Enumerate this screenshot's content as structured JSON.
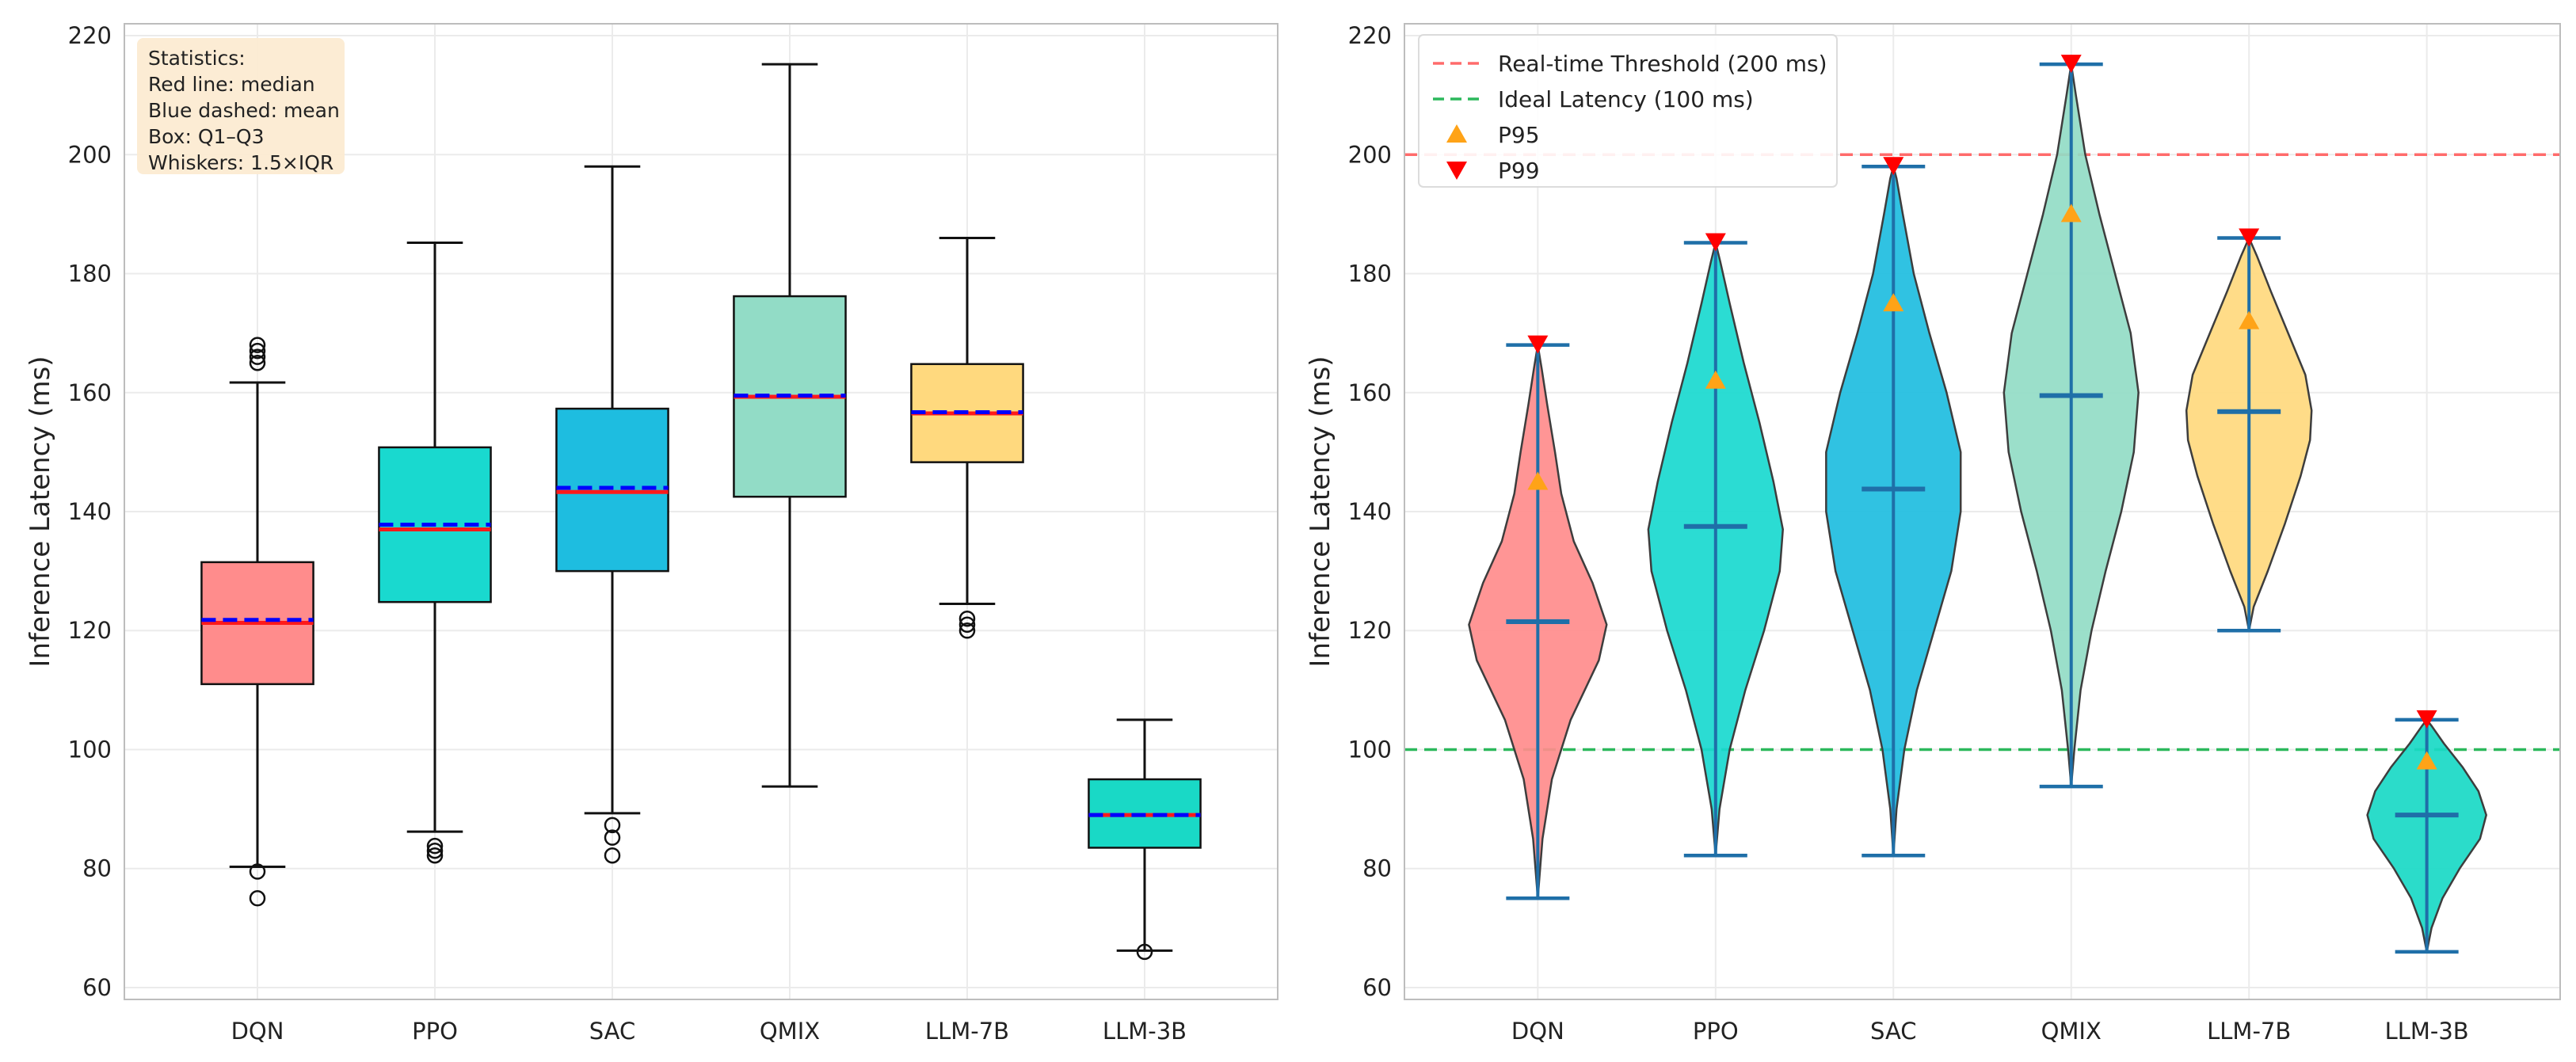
{
  "chart_data": [
    {
      "type": "box",
      "ylabel": "Inference Latency (ms)",
      "ylim": [
        58,
        222
      ],
      "yticks": [
        60,
        80,
        100,
        120,
        140,
        160,
        180,
        200,
        220
      ],
      "categories": [
        "DQN",
        "PPO",
        "SAC",
        "QMIX",
        "LLM-7B",
        "LLM-3B"
      ],
      "colors": [
        "#ff8c8c",
        "#19d9cf",
        "#1ebde0",
        "#92dcc6",
        "#ffd97e",
        "#19d9c6"
      ],
      "boxes": [
        {
          "q1": 111,
          "median": 121.3,
          "mean": 121.8,
          "q3": 131.5,
          "whisker_low": 80.3,
          "whisker_high": 161.7,
          "outliers": [
            75,
            79.5,
            165,
            166,
            167,
            168
          ]
        },
        {
          "q1": 124.8,
          "median": 137,
          "mean": 137.8,
          "q3": 150.8,
          "whisker_low": 86.2,
          "whisker_high": 185.2,
          "outliers": [
            82.2,
            83,
            83.8
          ]
        },
        {
          "q1": 130,
          "median": 143.3,
          "mean": 144,
          "q3": 157.3,
          "whisker_low": 89.3,
          "whisker_high": 198,
          "outliers": [
            82.2,
            85.2,
            87.3
          ]
        },
        {
          "q1": 142.5,
          "median": 159.3,
          "mean": 159.5,
          "q3": 176.2,
          "whisker_low": 93.8,
          "whisker_high": 215.2,
          "outliers": []
        },
        {
          "q1": 148.3,
          "median": 156.5,
          "mean": 156.7,
          "q3": 164.8,
          "whisker_low": 124.5,
          "whisker_high": 186,
          "outliers": [
            120,
            121,
            122
          ]
        },
        {
          "q1": 83.5,
          "median": 89,
          "mean": 89,
          "q3": 95,
          "whisker_low": 66.2,
          "whisker_high": 105,
          "outliers": [
            66
          ]
        }
      ],
      "stats_box": [
        "Statistics:",
        "Red line: median",
        "Blue dashed: mean",
        "Box: Q1–Q3",
        "Whiskers: 1.5×IQR"
      ]
    },
    {
      "type": "violin",
      "ylabel": "Inference Latency (ms)",
      "ylim": [
        58,
        222
      ],
      "yticks": [
        60,
        80,
        100,
        120,
        140,
        160,
        180,
        200,
        220
      ],
      "categories": [
        "DQN",
        "PPO",
        "SAC",
        "QMIX",
        "LLM-7B",
        "LLM-3B"
      ],
      "colors": [
        "#ff8c8c",
        "#19d9cf",
        "#1ebde0",
        "#92dcc6",
        "#ffd97e",
        "#19d9c6"
      ],
      "violins": [
        {
          "min": 75,
          "max": 168,
          "mean": 121.5,
          "p95": 145,
          "p99": 168,
          "profile": [
            [
              75,
              0
            ],
            [
              85,
              0.06
            ],
            [
              95,
              0.18
            ],
            [
              105,
              0.42
            ],
            [
              115,
              0.78
            ],
            [
              121,
              0.88
            ],
            [
              128,
              0.7
            ],
            [
              135,
              0.46
            ],
            [
              143,
              0.3
            ],
            [
              150,
              0.22
            ],
            [
              158,
              0.12
            ],
            [
              164,
              0.05
            ],
            [
              168,
              0
            ]
          ]
        },
        {
          "min": 82.2,
          "max": 185.2,
          "mean": 137.5,
          "p95": 162,
          "p99": 185.2,
          "profile": [
            [
              82.2,
              0
            ],
            [
              90,
              0.05
            ],
            [
              100,
              0.18
            ],
            [
              110,
              0.38
            ],
            [
              120,
              0.62
            ],
            [
              130,
              0.82
            ],
            [
              137,
              0.86
            ],
            [
              145,
              0.74
            ],
            [
              155,
              0.56
            ],
            [
              165,
              0.36
            ],
            [
              175,
              0.18
            ],
            [
              182,
              0.06
            ],
            [
              185.2,
              0
            ]
          ]
        },
        {
          "min": 82.2,
          "max": 198,
          "mean": 143.8,
          "p95": 175,
          "p99": 198,
          "profile": [
            [
              82.2,
              0
            ],
            [
              90,
              0.04
            ],
            [
              100,
              0.14
            ],
            [
              110,
              0.3
            ],
            [
              120,
              0.52
            ],
            [
              130,
              0.74
            ],
            [
              140,
              0.86
            ],
            [
              150,
              0.86
            ],
            [
              160,
              0.68
            ],
            [
              170,
              0.46
            ],
            [
              180,
              0.26
            ],
            [
              190,
              0.12
            ],
            [
              196,
              0.04
            ],
            [
              198,
              0
            ]
          ]
        },
        {
          "min": 93.8,
          "max": 215.2,
          "mean": 159.5,
          "p95": 190,
          "p99": 215.2,
          "profile": [
            [
              93.8,
              0
            ],
            [
              100,
              0.04
            ],
            [
              110,
              0.12
            ],
            [
              120,
              0.26
            ],
            [
              130,
              0.44
            ],
            [
              140,
              0.64
            ],
            [
              150,
              0.8
            ],
            [
              160,
              0.86
            ],
            [
              170,
              0.76
            ],
            [
              180,
              0.56
            ],
            [
              190,
              0.36
            ],
            [
              200,
              0.18
            ],
            [
              210,
              0.06
            ],
            [
              215.2,
              0
            ]
          ]
        },
        {
          "min": 120,
          "max": 186,
          "mean": 156.8,
          "p95": 172,
          "p99": 186,
          "profile": [
            [
              120,
              0
            ],
            [
              124,
              0.06
            ],
            [
              130,
              0.24
            ],
            [
              138,
              0.46
            ],
            [
              146,
              0.66
            ],
            [
              152,
              0.78
            ],
            [
              157,
              0.8
            ],
            [
              163,
              0.72
            ],
            [
              170,
              0.5
            ],
            [
              177,
              0.28
            ],
            [
              183,
              0.1
            ],
            [
              186,
              0
            ]
          ]
        },
        {
          "min": 66,
          "max": 105,
          "mean": 89,
          "p95": 98,
          "p99": 105,
          "profile": [
            [
              66,
              0
            ],
            [
              70,
              0.06
            ],
            [
              75,
              0.2
            ],
            [
              80,
              0.42
            ],
            [
              85,
              0.68
            ],
            [
              89,
              0.76
            ],
            [
              93,
              0.66
            ],
            [
              97,
              0.46
            ],
            [
              101,
              0.22
            ],
            [
              104,
              0.06
            ],
            [
              105,
              0
            ]
          ]
        }
      ],
      "reference_lines": [
        {
          "value": 200,
          "label": "Real-time Threshold (200 ms)",
          "color": "#ff6b6b"
        },
        {
          "value": 100,
          "label": "Ideal Latency (100 ms)",
          "color": "#2cb85c"
        }
      ],
      "legend": [
        {
          "label": "Real-time Threshold (200 ms)",
          "marker": "dashed",
          "color": "#ff6b6b"
        },
        {
          "label": "Ideal Latency (100 ms)",
          "marker": "dashed",
          "color": "#2cb85c"
        },
        {
          "label": "P95",
          "marker": "triangle-up",
          "color": "#ffa317"
        },
        {
          "label": "P99",
          "marker": "triangle-down",
          "color": "#ff0000"
        }
      ]
    }
  ]
}
